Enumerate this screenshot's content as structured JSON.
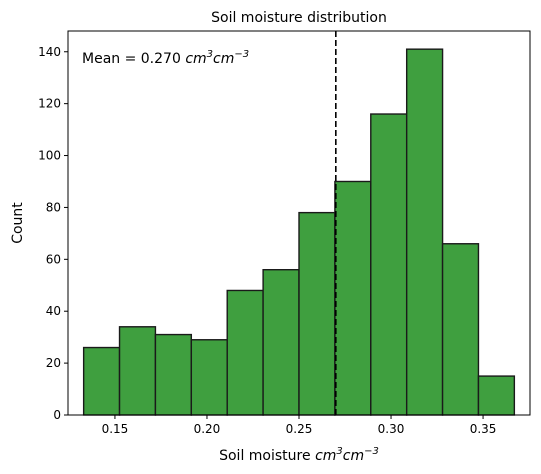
{
  "chart_data": {
    "type": "bar",
    "title": "Soil moisture distribution",
    "xlabel": {
      "text": "Soil moisture ",
      "unit_base1": "cm",
      "unit_exp1": "3",
      "unit_base2": "cm",
      "unit_exp2": "−3"
    },
    "ylabel": "Count",
    "annotation": {
      "prefix": "Mean = 0.270 ",
      "unit_base1": "cm",
      "unit_exp1": "3",
      "unit_base2": "cm",
      "unit_exp2": "−3"
    },
    "mean": 0.27,
    "xlim": [
      0.1245,
      0.3755
    ],
    "ylim": [
      0,
      148
    ],
    "bins": [
      {
        "start": 0.133,
        "end": 0.1525,
        "count": 26
      },
      {
        "start": 0.1525,
        "end": 0.172,
        "count": 34
      },
      {
        "start": 0.172,
        "end": 0.1915,
        "count": 31
      },
      {
        "start": 0.1915,
        "end": 0.211,
        "count": 29
      },
      {
        "start": 0.211,
        "end": 0.2305,
        "count": 48
      },
      {
        "start": 0.2305,
        "end": 0.25,
        "count": 56
      },
      {
        "start": 0.25,
        "end": 0.2695,
        "count": 78
      },
      {
        "start": 0.2695,
        "end": 0.289,
        "count": 90
      },
      {
        "start": 0.289,
        "end": 0.3085,
        "count": 116
      },
      {
        "start": 0.3085,
        "end": 0.328,
        "count": 141
      },
      {
        "start": 0.328,
        "end": 0.3475,
        "count": 66
      },
      {
        "start": 0.3475,
        "end": 0.367,
        "count": 15
      }
    ],
    "xticks": [
      0.15,
      0.2,
      0.25,
      0.3,
      0.35
    ],
    "xtick_labels": [
      "0.15",
      "0.20",
      "0.25",
      "0.30",
      "0.35"
    ],
    "yticks": [
      0,
      20,
      40,
      60,
      80,
      100,
      120,
      140
    ],
    "ytick_labels": [
      "0",
      "20",
      "40",
      "60",
      "80",
      "100",
      "120",
      "140"
    ],
    "bar_color": "#3f9f3f",
    "bar_edge_color": "#1a1a1a",
    "mean_line_color": "#000000",
    "grid": false,
    "legend": "none"
  }
}
